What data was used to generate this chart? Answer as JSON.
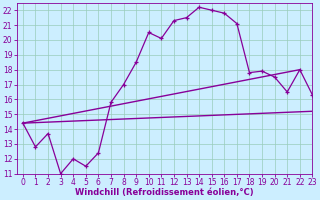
{
  "xlabel": "Windchill (Refroidissement éolien,°C)",
  "xlim": [
    -0.5,
    23
  ],
  "ylim": [
    11,
    22.5
  ],
  "yticks": [
    11,
    12,
    13,
    14,
    15,
    16,
    17,
    18,
    19,
    20,
    21,
    22
  ],
  "xticks": [
    0,
    1,
    2,
    3,
    4,
    5,
    6,
    7,
    8,
    9,
    10,
    11,
    12,
    13,
    14,
    15,
    16,
    17,
    18,
    19,
    20,
    21,
    22,
    23
  ],
  "bg_color": "#cceeff",
  "grid_color": "#99ccbb",
  "line_color": "#880099",
  "line1_x": [
    0,
    1,
    2,
    3,
    4,
    5,
    6,
    7,
    8,
    9,
    10,
    11,
    12,
    13,
    14,
    15,
    16,
    17,
    18,
    19,
    20,
    21,
    22,
    23
  ],
  "line1_y": [
    14.4,
    12.8,
    13.7,
    11.0,
    12.0,
    11.5,
    12.4,
    15.8,
    17.0,
    18.5,
    20.5,
    20.1,
    21.3,
    21.5,
    22.2,
    22.0,
    21.8,
    21.1,
    17.8,
    17.9,
    17.5,
    16.5,
    18.0,
    16.3
  ],
  "line2_x": [
    0,
    22
  ],
  "line2_y": [
    14.4,
    18.0
  ],
  "line3_x": [
    0,
    23
  ],
  "line3_y": [
    14.4,
    15.2
  ],
  "tick_fontsize": 5.5,
  "xlabel_fontsize": 6.0
}
